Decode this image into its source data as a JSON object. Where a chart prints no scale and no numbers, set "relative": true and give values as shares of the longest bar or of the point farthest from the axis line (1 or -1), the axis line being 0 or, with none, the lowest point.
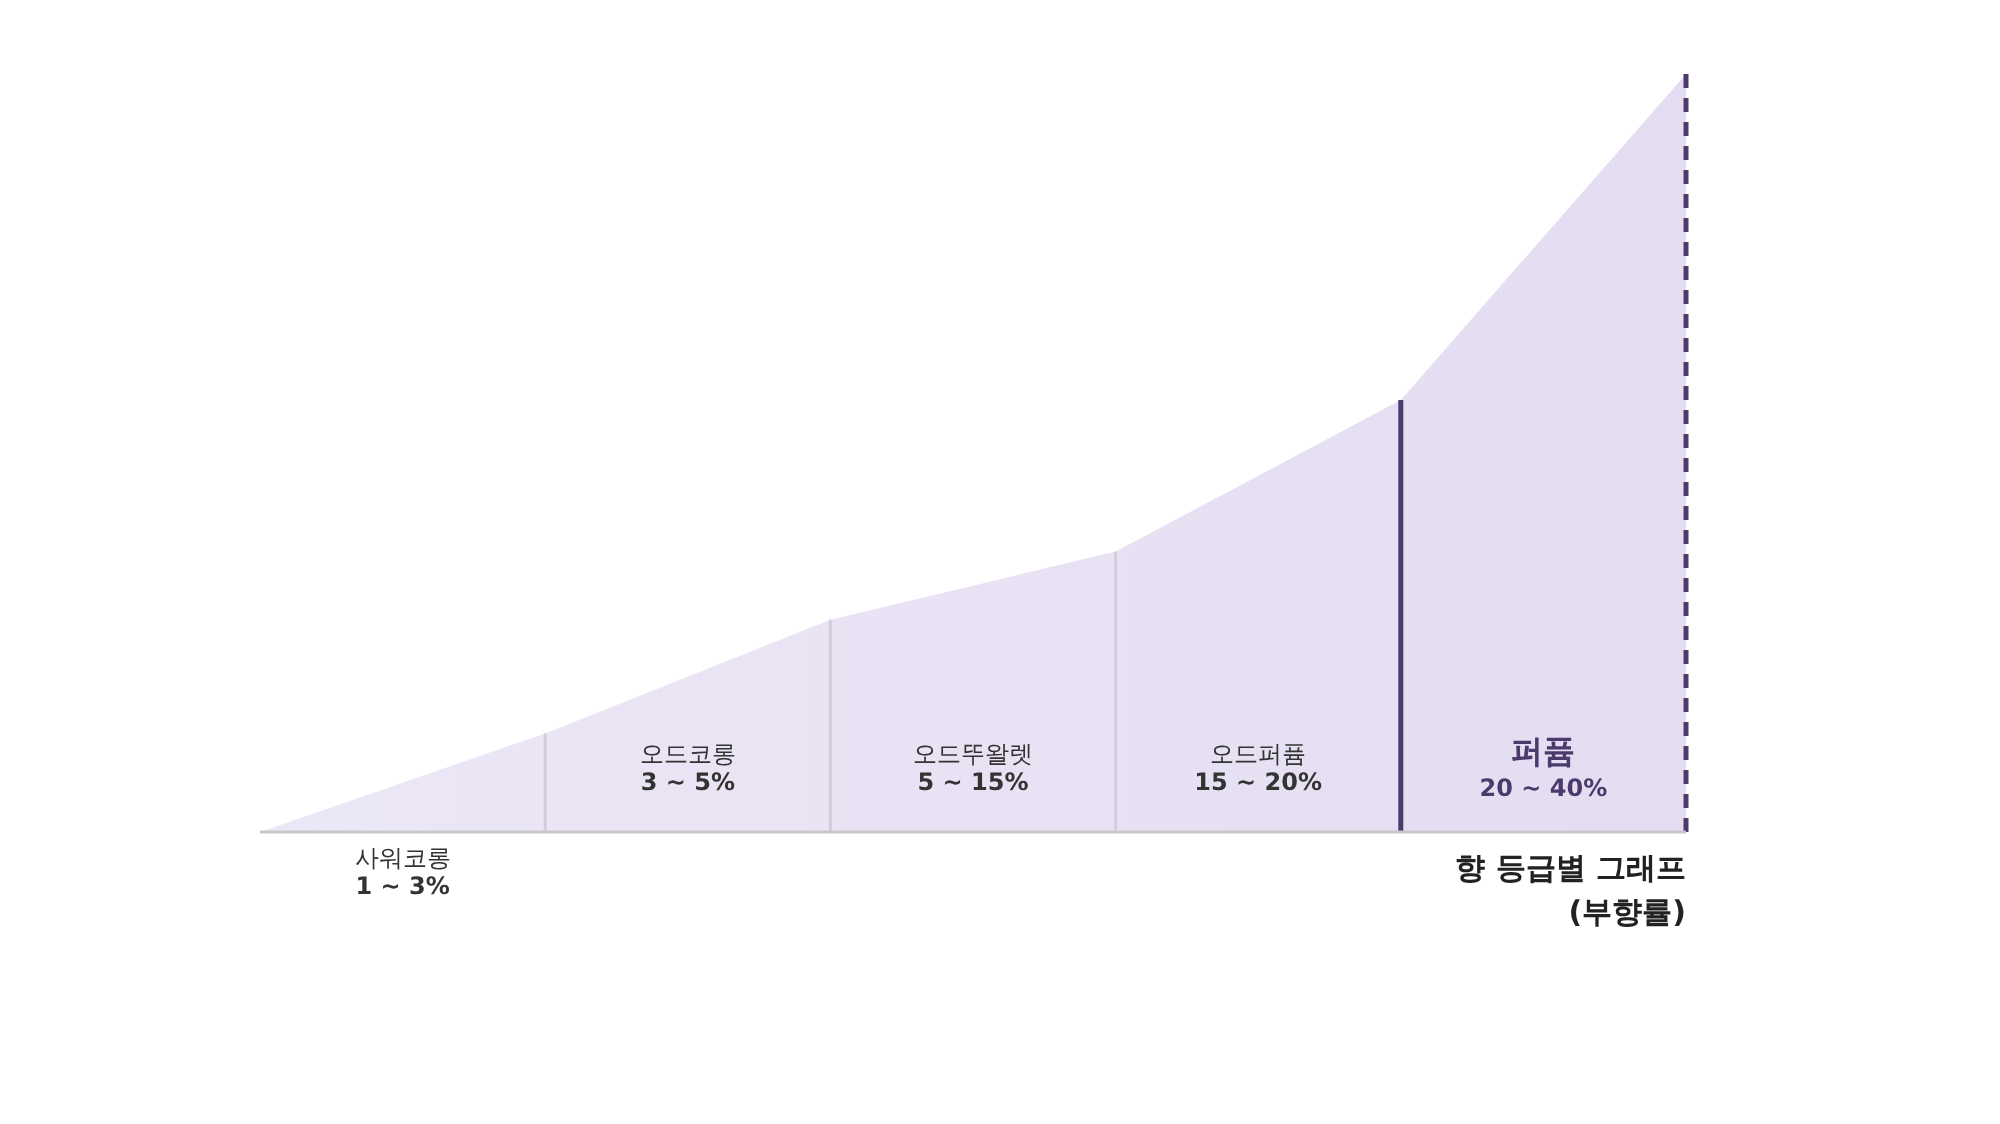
{
  "chart_data": {
    "type": "area",
    "title": "향 등급별 그래프\n(부향률)",
    "relative": true,
    "categories": [
      null,
      null,
      null,
      null,
      null,
      null
    ],
    "series": [
      {
        "color": "#e4ddf2",
        "values": [
          0,
          0.13,
          0.28,
          0.37,
          0.57,
          1
        ]
      }
    ],
    "annotations": [
      "사워코롱\n1 ~ 3%",
      "오드코롱\n3 ~ 5%",
      "오드뚜왈렛\n5 ~ 15%",
      "오드퍼퓸\n15 ~ 20%",
      "퍼퓸\n20 ~ 40%"
    ]
  }
}
